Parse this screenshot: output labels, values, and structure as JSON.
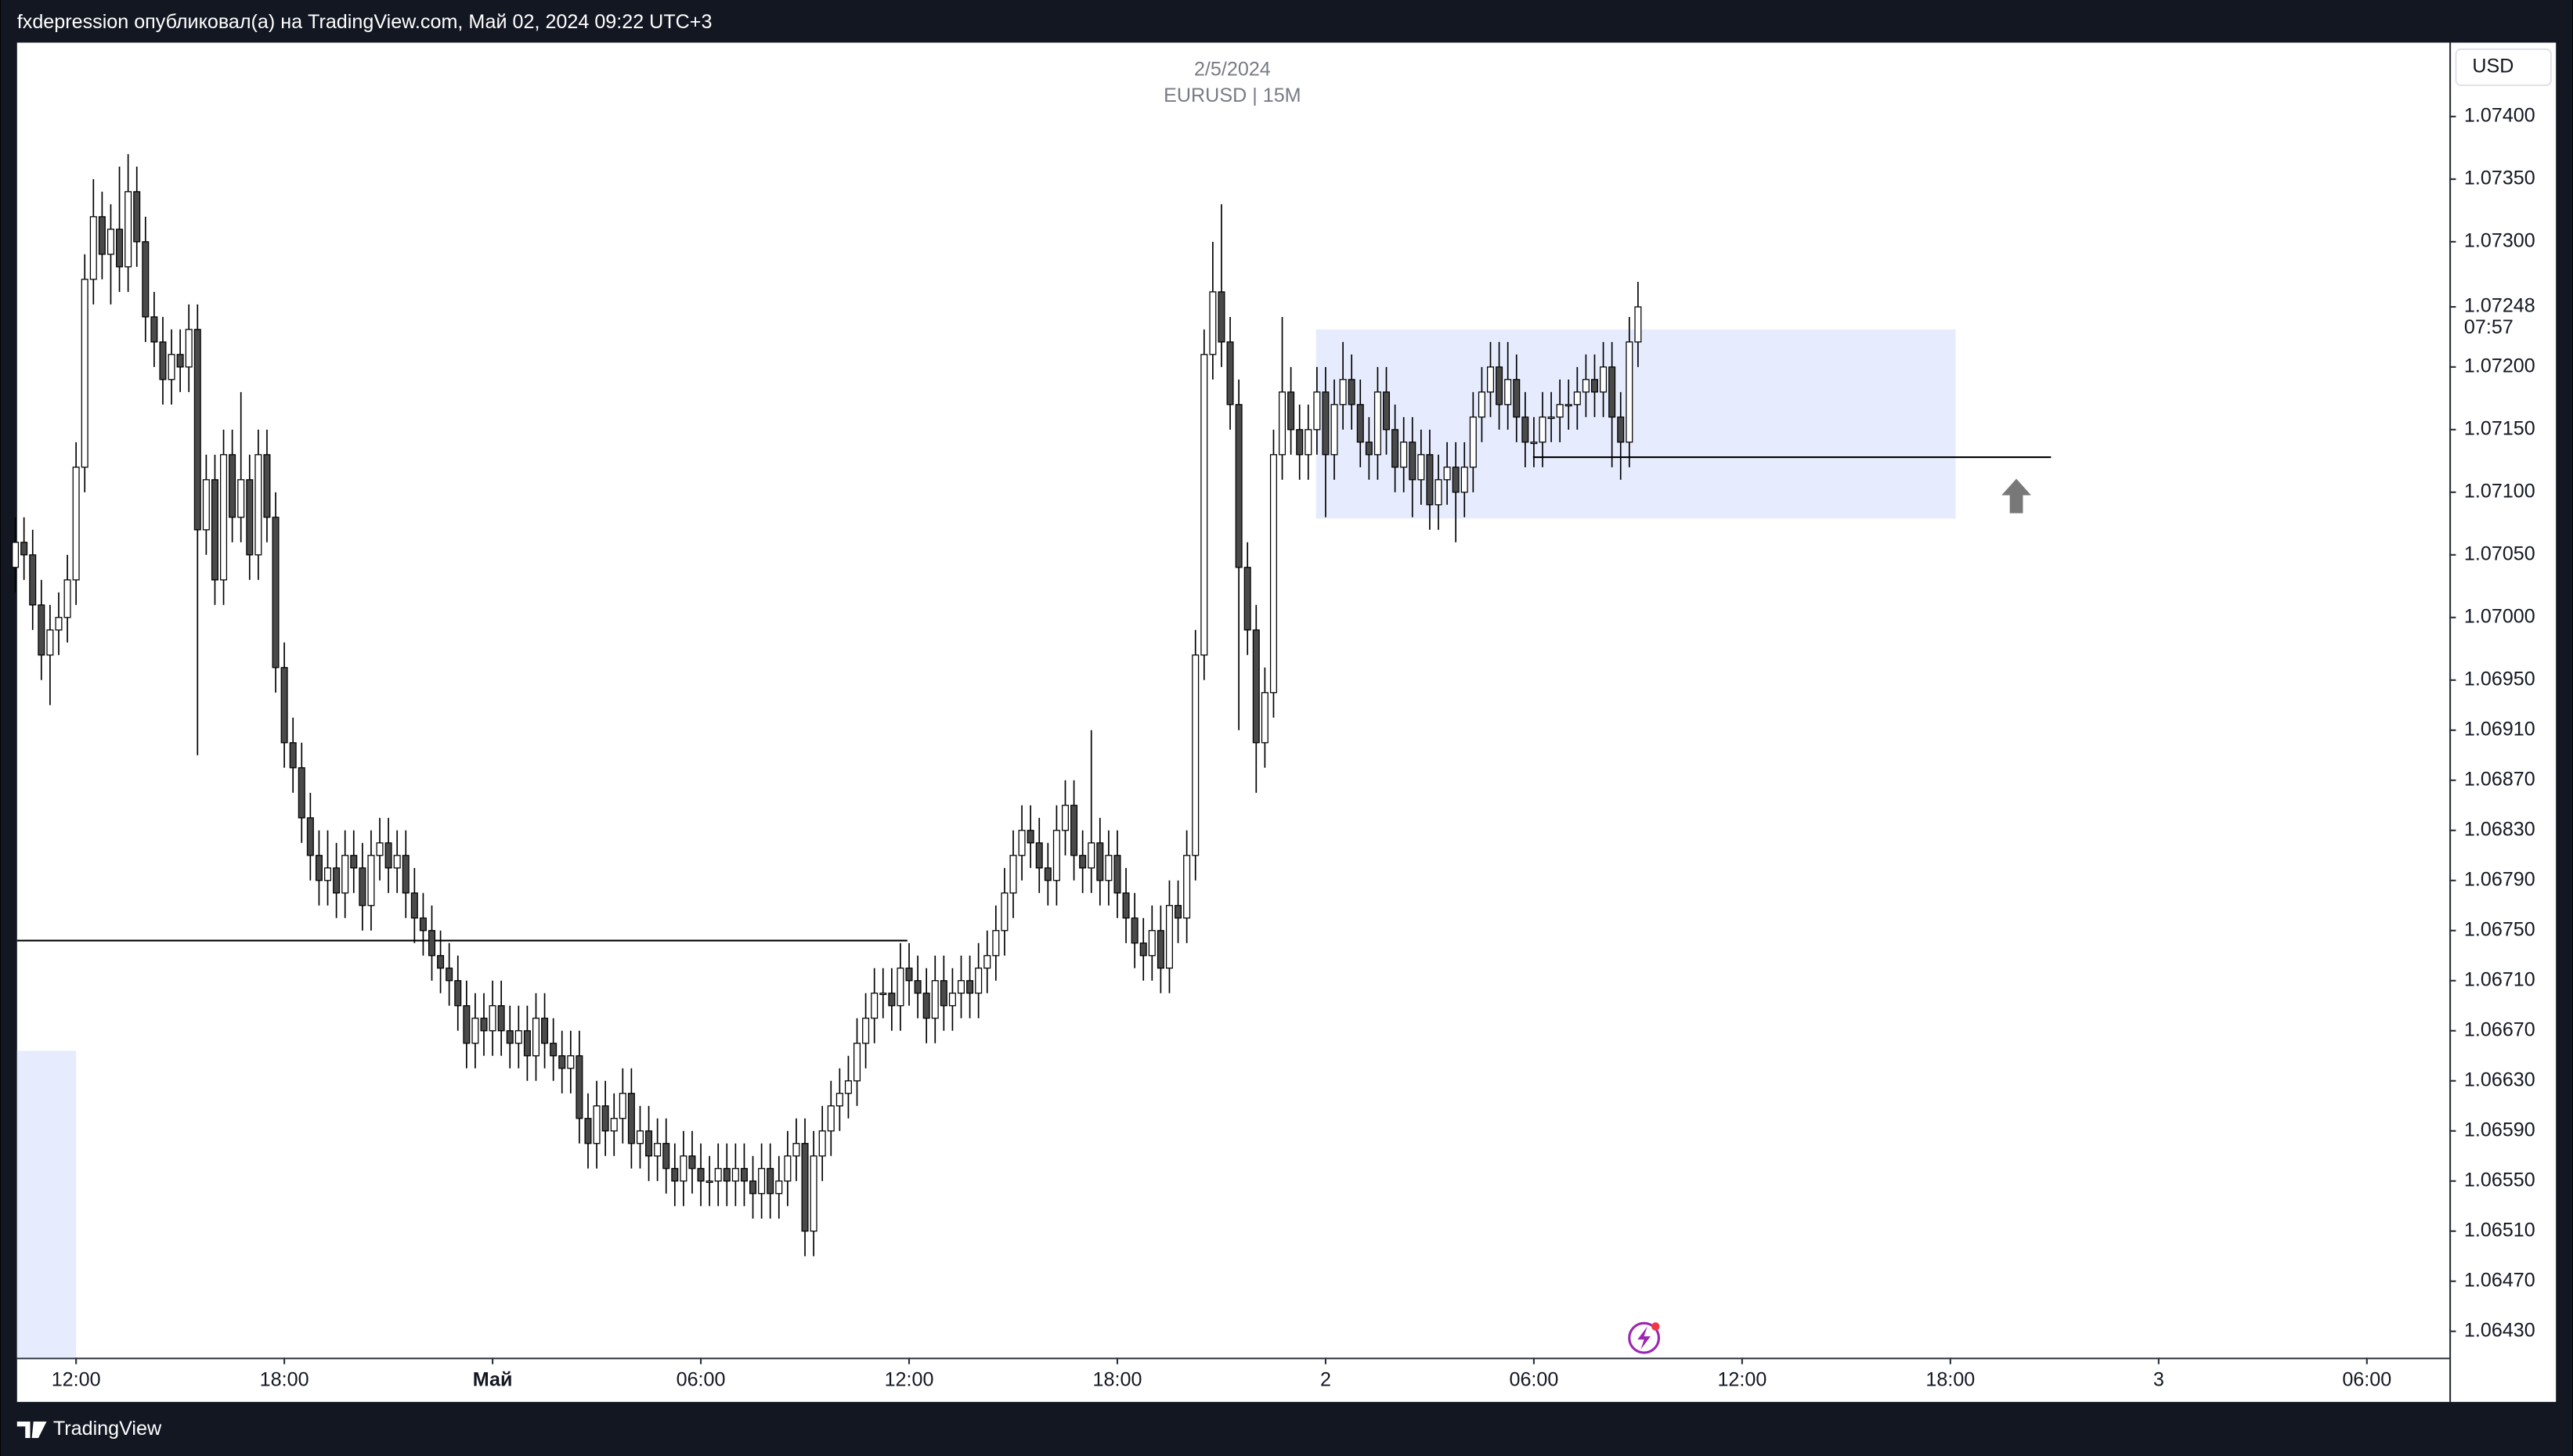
{
  "header": {
    "title": "fxdepression опубликовал(а) на TradingView.com, Май 02, 2024 09:22 UTC+3"
  },
  "chart_data": {
    "type": "candlestick",
    "date": "2/5/2024",
    "symbol": "EURUSD | 15M",
    "currency": "USD",
    "up_color": "#ffffff",
    "down_color": "#4a4a4a",
    "zone_color": "#e6ecfd",
    "xlim": [
      0.2,
      280.5
    ],
    "xticks": [
      {
        "value": 7,
        "label": "12:00"
      },
      {
        "value": 31,
        "label": "18:00"
      },
      {
        "value": 55,
        "label": "Май"
      },
      {
        "value": 79,
        "label": "06:00"
      },
      {
        "value": 103,
        "label": "12:00"
      },
      {
        "value": 127,
        "label": "18:00"
      },
      {
        "value": 151,
        "label": "2"
      },
      {
        "value": 175,
        "label": "06:00"
      },
      {
        "value": 199,
        "label": "12:00"
      },
      {
        "value": 223,
        "label": "18:00"
      },
      {
        "value": 247,
        "label": "3"
      },
      {
        "value": 271,
        "label": "06:00"
      }
    ],
    "ylim": [
      1.06409,
      1.07459
    ],
    "yticks": [
      {
        "value": 1.074,
        "label": "1.07400"
      },
      {
        "value": 1.0735,
        "label": "1.07350"
      },
      {
        "value": 1.073,
        "label": "1.07300"
      },
      {
        "value": 1.072,
        "label": "1.07200"
      },
      {
        "value": 1.0715,
        "label": "1.07150"
      },
      {
        "value": 1.071,
        "label": "1.07100"
      },
      {
        "value": 1.0705,
        "label": "1.07050"
      },
      {
        "value": 1.07,
        "label": "1.07000"
      },
      {
        "value": 1.0695,
        "label": "1.06950"
      },
      {
        "value": 1.0691,
        "label": "1.06910"
      },
      {
        "value": 1.0687,
        "label": "1.06870"
      },
      {
        "value": 1.0683,
        "label": "1.06830"
      },
      {
        "value": 1.0679,
        "label": "1.06790"
      },
      {
        "value": 1.0675,
        "label": "1.06750"
      },
      {
        "value": 1.0671,
        "label": "1.06710"
      },
      {
        "value": 1.0667,
        "label": "1.06670"
      },
      {
        "value": 1.0663,
        "label": "1.06630"
      },
      {
        "value": 1.0659,
        "label": "1.06590"
      },
      {
        "value": 1.0655,
        "label": "1.06550"
      },
      {
        "value": 1.0651,
        "label": "1.06510"
      },
      {
        "value": 1.0647,
        "label": "1.06470"
      },
      {
        "value": 1.0643,
        "label": "1.06430"
      }
    ],
    "last_price": 1.07248,
    "countdown": "07:57",
    "levels": [
      {
        "value": 1.06742,
        "x": [
          0.2,
          102.8
        ]
      },
      {
        "value": 1.07128,
        "x": [
          174.9,
          234.6
        ]
      }
    ],
    "zones": [
      {
        "y": [
          1.07079,
          1.0723
        ],
        "x": [
          149.9,
          223.6
        ]
      },
      {
        "y": [
          1.06409,
          1.06654
        ],
        "x": [
          0.2,
          7
        ]
      }
    ],
    "ohlc": [
      [
        1.0704,
        1.0708,
        1.0702,
        1.0706
      ],
      [
        1.0706,
        1.0708,
        1.0703,
        1.0705
      ],
      [
        1.0705,
        1.0707,
        1.0699,
        1.0701
      ],
      [
        1.0701,
        1.0703,
        1.0695,
        1.0697
      ],
      [
        1.0697,
        1.0701,
        1.0693,
        1.0699
      ],
      [
        1.0699,
        1.0702,
        1.0697,
        1.07
      ],
      [
        1.07,
        1.0705,
        1.0698,
        1.0703
      ],
      [
        1.0703,
        1.0714,
        1.0701,
        1.0712
      ],
      [
        1.0712,
        1.0729,
        1.071,
        1.0727
      ],
      [
        1.0727,
        1.0735,
        1.0725,
        1.0732
      ],
      [
        1.0732,
        1.0734,
        1.0727,
        1.0729
      ],
      [
        1.0729,
        1.0733,
        1.0725,
        1.0731
      ],
      [
        1.0731,
        1.0736,
        1.0726,
        1.0728
      ],
      [
        1.0728,
        1.0737,
        1.0726,
        1.0734
      ],
      [
        1.0734,
        1.0736,
        1.0728,
        1.073
      ],
      [
        1.073,
        1.0732,
        1.0722,
        1.0724
      ],
      [
        1.0724,
        1.0726,
        1.072,
        1.0722
      ],
      [
        1.0722,
        1.0724,
        1.0717,
        1.0719
      ],
      [
        1.0719,
        1.0723,
        1.0717,
        1.0721
      ],
      [
        1.0721,
        1.0723,
        1.0718,
        1.072
      ],
      [
        1.072,
        1.0725,
        1.0718,
        1.0723
      ],
      [
        1.0723,
        1.0725,
        1.0689,
        1.0707
      ],
      [
        1.0707,
        1.0713,
        1.0705,
        1.0711
      ],
      [
        1.0711,
        1.0713,
        1.0701,
        1.0703
      ],
      [
        1.0703,
        1.0715,
        1.0701,
        1.0713
      ],
      [
        1.0713,
        1.0715,
        1.0706,
        1.0708
      ],
      [
        1.0708,
        1.0718,
        1.0706,
        1.0711
      ],
      [
        1.0711,
        1.0713,
        1.0703,
        1.0705
      ],
      [
        1.0705,
        1.0715,
        1.0703,
        1.0713
      ],
      [
        1.0713,
        1.0715,
        1.0706,
        1.0708
      ],
      [
        1.0708,
        1.071,
        1.0694,
        1.0696
      ],
      [
        1.0696,
        1.0698,
        1.0688,
        1.069
      ],
      [
        1.069,
        1.0692,
        1.0686,
        1.0688
      ],
      [
        1.0688,
        1.069,
        1.0682,
        1.0684
      ],
      [
        1.0684,
        1.0686,
        1.0679,
        1.0681
      ],
      [
        1.0681,
        1.0683,
        1.0677,
        1.0679
      ],
      [
        1.0679,
        1.0683,
        1.0677,
        1.068
      ],
      [
        1.068,
        1.0682,
        1.0676,
        1.0678
      ],
      [
        1.0678,
        1.0683,
        1.0676,
        1.0681
      ],
      [
        1.0681,
        1.0683,
        1.0678,
        1.068
      ],
      [
        1.068,
        1.0682,
        1.0675,
        1.0677
      ],
      [
        1.0677,
        1.0683,
        1.0675,
        1.0681
      ],
      [
        1.0681,
        1.0684,
        1.0679,
        1.0682
      ],
      [
        1.0682,
        1.0684,
        1.0678,
        1.068
      ],
      [
        1.068,
        1.0683,
        1.0678,
        1.0681
      ],
      [
        1.0681,
        1.0683,
        1.0676,
        1.0678
      ],
      [
        1.0678,
        1.068,
        1.0674,
        1.0676
      ],
      [
        1.0676,
        1.0678,
        1.0673,
        1.0675
      ],
      [
        1.0675,
        1.0677,
        1.0671,
        1.0673
      ],
      [
        1.0673,
        1.0675,
        1.067,
        1.0672
      ],
      [
        1.0672,
        1.0674,
        1.0669,
        1.0671
      ],
      [
        1.0671,
        1.0673,
        1.0667,
        1.0669
      ],
      [
        1.0669,
        1.0671,
        1.0664,
        1.0666
      ],
      [
        1.0666,
        1.067,
        1.0664,
        1.0668
      ],
      [
        1.0668,
        1.067,
        1.0665,
        1.0667
      ],
      [
        1.0667,
        1.0671,
        1.0665,
        1.0669
      ],
      [
        1.0669,
        1.0671,
        1.0665,
        1.0667
      ],
      [
        1.0667,
        1.0669,
        1.0664,
        1.0666
      ],
      [
        1.0666,
        1.0669,
        1.0664,
        1.0667
      ],
      [
        1.0667,
        1.0669,
        1.0663,
        1.0665
      ],
      [
        1.0665,
        1.067,
        1.0663,
        1.0668
      ],
      [
        1.0668,
        1.067,
        1.0664,
        1.0666
      ],
      [
        1.0666,
        1.0668,
        1.0663,
        1.0665
      ],
      [
        1.0665,
        1.0667,
        1.0662,
        1.0664
      ],
      [
        1.0664,
        1.0667,
        1.0662,
        1.0665
      ],
      [
        1.0665,
        1.0667,
        1.0658,
        1.066
      ],
      [
        1.066,
        1.0662,
        1.0656,
        1.0658
      ],
      [
        1.0658,
        1.0663,
        1.0656,
        1.0661
      ],
      [
        1.0661,
        1.0663,
        1.0657,
        1.0659
      ],
      [
        1.0659,
        1.0662,
        1.0657,
        1.066
      ],
      [
        1.066,
        1.0664,
        1.0658,
        1.0662
      ],
      [
        1.0662,
        1.0664,
        1.0656,
        1.0658
      ],
      [
        1.0658,
        1.0661,
        1.0656,
        1.0659
      ],
      [
        1.0659,
        1.0661,
        1.0655,
        1.0657
      ],
      [
        1.0657,
        1.066,
        1.0655,
        1.0658
      ],
      [
        1.0658,
        1.066,
        1.0654,
        1.0656
      ],
      [
        1.0656,
        1.0658,
        1.0653,
        1.0655
      ],
      [
        1.0655,
        1.0659,
        1.0653,
        1.0657
      ],
      [
        1.0657,
        1.0659,
        1.0654,
        1.0656
      ],
      [
        1.0656,
        1.0658,
        1.0653,
        1.0655
      ],
      [
        1.0655,
        1.0657,
        1.0653,
        1.0655
      ],
      [
        1.0655,
        1.0658,
        1.0653,
        1.0656
      ],
      [
        1.0656,
        1.0658,
        1.0653,
        1.0655
      ],
      [
        1.0655,
        1.0658,
        1.0653,
        1.0656
      ],
      [
        1.0656,
        1.0658,
        1.0653,
        1.0655
      ],
      [
        1.0655,
        1.0657,
        1.0652,
        1.0654
      ],
      [
        1.0654,
        1.0658,
        1.0652,
        1.0656
      ],
      [
        1.0656,
        1.0658,
        1.0652,
        1.0654
      ],
      [
        1.0654,
        1.0657,
        1.0652,
        1.0655
      ],
      [
        1.0655,
        1.0659,
        1.0653,
        1.0657
      ],
      [
        1.0657,
        1.066,
        1.0655,
        1.0658
      ],
      [
        1.0658,
        1.066,
        1.0649,
        1.0651
      ],
      [
        1.0651,
        1.0659,
        1.0649,
        1.0657
      ],
      [
        1.0657,
        1.0661,
        1.0655,
        1.0659
      ],
      [
        1.0659,
        1.0663,
        1.0657,
        1.0661
      ],
      [
        1.0661,
        1.0664,
        1.0659,
        1.0662
      ],
      [
        1.0662,
        1.0665,
        1.066,
        1.0663
      ],
      [
        1.0663,
        1.0668,
        1.0661,
        1.0666
      ],
      [
        1.0666,
        1.067,
        1.0664,
        1.0668
      ],
      [
        1.0668,
        1.0672,
        1.0666,
        1.067
      ],
      [
        1.067,
        1.0672,
        1.0668,
        1.067
      ],
      [
        1.067,
        1.0672,
        1.0667,
        1.0669
      ],
      [
        1.0669,
        1.0674,
        1.0667,
        1.0672
      ],
      [
        1.0672,
        1.0674,
        1.0669,
        1.0671
      ],
      [
        1.0671,
        1.0673,
        1.0668,
        1.067
      ],
      [
        1.067,
        1.0672,
        1.0666,
        1.0668
      ],
      [
        1.0668,
        1.0673,
        1.0666,
        1.0671
      ],
      [
        1.0671,
        1.0673,
        1.0667,
        1.0669
      ],
      [
        1.0669,
        1.0672,
        1.0667,
        1.067
      ],
      [
        1.067,
        1.0673,
        1.0668,
        1.0671
      ],
      [
        1.0671,
        1.0673,
        1.0668,
        1.067
      ],
      [
        1.067,
        1.0674,
        1.0668,
        1.0672
      ],
      [
        1.0672,
        1.0675,
        1.067,
        1.0673
      ],
      [
        1.0673,
        1.0677,
        1.0671,
        1.0675
      ],
      [
        1.0675,
        1.068,
        1.0673,
        1.0678
      ],
      [
        1.0678,
        1.0683,
        1.0676,
        1.0681
      ],
      [
        1.0681,
        1.0685,
        1.0679,
        1.0683
      ],
      [
        1.0683,
        1.0685,
        1.068,
        1.0682
      ],
      [
        1.0682,
        1.0684,
        1.0678,
        1.068
      ],
      [
        1.068,
        1.0682,
        1.0677,
        1.0679
      ],
      [
        1.0679,
        1.0685,
        1.0677,
        1.0683
      ],
      [
        1.0683,
        1.0687,
        1.0681,
        1.0685
      ],
      [
        1.0685,
        1.0687,
        1.0679,
        1.0681
      ],
      [
        1.0681,
        1.0683,
        1.0678,
        1.068
      ],
      [
        1.068,
        1.0691,
        1.0678,
        1.0682
      ],
      [
        1.0682,
        1.0684,
        1.0677,
        1.0679
      ],
      [
        1.0679,
        1.0683,
        1.0677,
        1.0681
      ],
      [
        1.0681,
        1.0683,
        1.0676,
        1.0678
      ],
      [
        1.0678,
        1.068,
        1.0674,
        1.0676
      ],
      [
        1.0676,
        1.0678,
        1.0672,
        1.0674
      ],
      [
        1.0674,
        1.0676,
        1.0671,
        1.0673
      ],
      [
        1.0673,
        1.0677,
        1.0671,
        1.0675
      ],
      [
        1.0675,
        1.0677,
        1.067,
        1.0672
      ],
      [
        1.0672,
        1.0679,
        1.067,
        1.0677
      ],
      [
        1.0677,
        1.0679,
        1.0674,
        1.0676
      ],
      [
        1.0676,
        1.0683,
        1.0674,
        1.0681
      ],
      [
        1.0681,
        1.0699,
        1.0679,
        1.0697
      ],
      [
        1.0697,
        1.0723,
        1.0695,
        1.0721
      ],
      [
        1.0721,
        1.073,
        1.0719,
        1.0726
      ],
      [
        1.0726,
        1.0733,
        1.072,
        1.0722
      ],
      [
        1.0722,
        1.0724,
        1.0715,
        1.0717
      ],
      [
        1.0717,
        1.0719,
        1.0691,
        1.0704
      ],
      [
        1.0704,
        1.0706,
        1.0697,
        1.0699
      ],
      [
        1.0699,
        1.0701,
        1.0686,
        1.069
      ],
      [
        1.069,
        1.0696,
        1.0688,
        1.0694
      ],
      [
        1.0694,
        1.0715,
        1.0692,
        1.0713
      ],
      [
        1.0713,
        1.0724,
        1.0711,
        1.0718
      ],
      [
        1.0718,
        1.072,
        1.0713,
        1.0715
      ],
      [
        1.0715,
        1.0717,
        1.0711,
        1.0713
      ],
      [
        1.0713,
        1.0717,
        1.0711,
        1.0715
      ],
      [
        1.0715,
        1.072,
        1.0713,
        1.0718
      ],
      [
        1.0718,
        1.072,
        1.0708,
        1.0713
      ],
      [
        1.0713,
        1.0719,
        1.0711,
        1.0717
      ],
      [
        1.0717,
        1.0722,
        1.0715,
        1.0719
      ],
      [
        1.0719,
        1.0721,
        1.0715,
        1.0717
      ],
      [
        1.0717,
        1.0719,
        1.0712,
        1.0714
      ],
      [
        1.0714,
        1.0716,
        1.0711,
        1.0713
      ],
      [
        1.0713,
        1.072,
        1.0711,
        1.0718
      ],
      [
        1.0718,
        1.072,
        1.0713,
        1.0715
      ],
      [
        1.0715,
        1.0717,
        1.071,
        1.0712
      ],
      [
        1.0712,
        1.0716,
        1.071,
        1.0714
      ],
      [
        1.0714,
        1.0716,
        1.0708,
        1.0711
      ],
      [
        1.0711,
        1.0715,
        1.0709,
        1.0713
      ],
      [
        1.0713,
        1.0715,
        1.0707,
        1.0709
      ],
      [
        1.0709,
        1.0713,
        1.0707,
        1.0711
      ],
      [
        1.0711,
        1.0714,
        1.0709,
        1.0712
      ],
      [
        1.0712,
        1.0714,
        1.0706,
        1.071
      ],
      [
        1.071,
        1.0714,
        1.0708,
        1.0712
      ],
      [
        1.0712,
        1.0718,
        1.071,
        1.0716
      ],
      [
        1.0716,
        1.072,
        1.0714,
        1.0718
      ],
      [
        1.0718,
        1.0722,
        1.0716,
        1.072
      ],
      [
        1.072,
        1.0722,
        1.0715,
        1.0717
      ],
      [
        1.0717,
        1.0722,
        1.0715,
        1.0719
      ],
      [
        1.0719,
        1.0721,
        1.0714,
        1.0716
      ],
      [
        1.0716,
        1.0718,
        1.0712,
        1.0714
      ],
      [
        1.0714,
        1.0716,
        1.0712,
        1.0714
      ],
      [
        1.0714,
        1.0718,
        1.0712,
        1.0716
      ],
      [
        1.0716,
        1.0718,
        1.0714,
        1.0716
      ],
      [
        1.0716,
        1.0719,
        1.0714,
        1.0717
      ],
      [
        1.0717,
        1.0719,
        1.0715,
        1.0717
      ],
      [
        1.0717,
        1.072,
        1.0715,
        1.0718
      ],
      [
        1.0718,
        1.0721,
        1.0716,
        1.0719
      ],
      [
        1.0719,
        1.0721,
        1.0716,
        1.0718
      ],
      [
        1.0718,
        1.0722,
        1.0716,
        1.072
      ],
      [
        1.072,
        1.0722,
        1.0712,
        1.0716
      ],
      [
        1.0716,
        1.0718,
        1.0711,
        1.0714
      ],
      [
        1.0714,
        1.0724,
        1.0712,
        1.0722
      ],
      [
        1.0722,
        1.07268,
        1.072,
        1.07248
      ]
    ]
  },
  "footer": {
    "brand": "TradingView"
  }
}
